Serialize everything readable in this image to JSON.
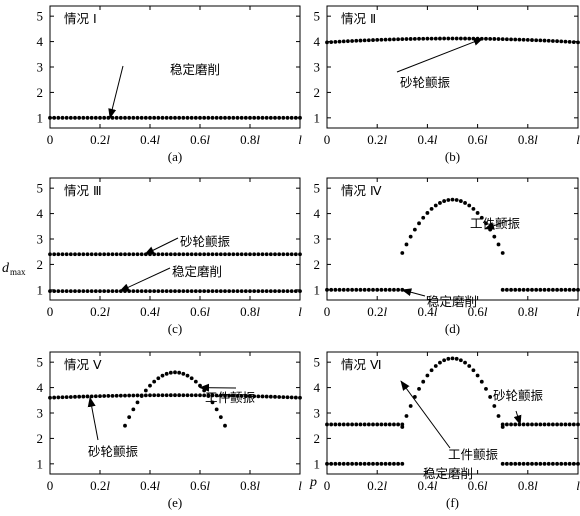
{
  "figure": {
    "ylabel": {
      "main": "d",
      "sub": "max"
    },
    "xlabel": "p"
  },
  "chart_data": [
    {
      "panel": "a",
      "type": "scatter",
      "title": "情况 Ⅰ",
      "caption": "(a)",
      "x_ticks": [
        "0",
        "0.2l",
        "0.4l",
        "0.6l",
        "0.8l",
        "l"
      ],
      "y_ticks": [
        "1",
        "2",
        "3",
        "4",
        "5"
      ],
      "xlim": [
        0,
        1
      ],
      "ylim": [
        0.6,
        5.4
      ],
      "series": [
        {
          "x_range": [
            0,
            1
          ],
          "y": 1.0
        }
      ],
      "annotations": [
        {
          "text": "稳定磨削",
          "x": 0.2,
          "y": 1.0
        }
      ]
    },
    {
      "panel": "b",
      "type": "scatter",
      "title": "情况 Ⅱ",
      "caption": "(b)",
      "x_ticks": [
        "0",
        "0.2l",
        "0.4l",
        "0.6l",
        "0.8l",
        "l"
      ],
      "y_ticks": [
        "1",
        "2",
        "3",
        "4",
        "5"
      ],
      "xlim": [
        0,
        1
      ],
      "ylim": [
        0.6,
        5.4
      ],
      "series": [
        {
          "x_range": [
            0,
            1
          ],
          "base": 3.97,
          "peak": 4.12,
          "peak_x": 0.5
        }
      ],
      "annotations": [
        {
          "text": "砂轮颤振",
          "x": 0.6,
          "y": 4.1
        }
      ]
    },
    {
      "panel": "c",
      "type": "scatter",
      "title": "情况 Ⅲ",
      "caption": "(c)",
      "x_ticks": [
        "0",
        "0.2l",
        "0.4l",
        "0.6l",
        "0.8l",
        "l"
      ],
      "y_ticks": [
        "1",
        "2",
        "3",
        "4",
        "5"
      ],
      "xlim": [
        0,
        1
      ],
      "ylim": [
        0.6,
        5.4
      ],
      "series": [
        {
          "x_range": [
            0,
            1
          ],
          "y": 2.4
        },
        {
          "x_range": [
            0,
            1
          ],
          "y": 0.95
        }
      ],
      "annotations": [
        {
          "text": "砂轮颤振",
          "x": 0.32,
          "y": 2.4
        },
        {
          "text": "稳定磨削",
          "x": 0.25,
          "y": 0.95
        }
      ]
    },
    {
      "panel": "d",
      "type": "scatter",
      "title": "情况 Ⅳ",
      "caption": "(d)",
      "x_ticks": [
        "0",
        "0.2l",
        "0.4l",
        "0.6l",
        "0.8l",
        "l"
      ],
      "y_ticks": [
        "1",
        "2",
        "3",
        "4",
        "5"
      ],
      "xlim": [
        0,
        1
      ],
      "ylim": [
        0.6,
        5.4
      ],
      "series": [
        {
          "x_range": [
            0,
            0.3
          ],
          "y": 1.0
        },
        {
          "x_range": [
            0.3,
            0.7
          ],
          "base": 2.45,
          "peak": 4.55,
          "peak_x": 0.5
        },
        {
          "x_range": [
            0.7,
            1
          ],
          "y": 1.0
        }
      ],
      "annotations": [
        {
          "text": "工件颤振",
          "x": 0.62,
          "y": 3.55
        },
        {
          "text": "稳定磨削",
          "x": 0.3,
          "y": 1.0
        }
      ]
    },
    {
      "panel": "e",
      "type": "scatter",
      "title": "情况 Ⅴ",
      "caption": "(e)",
      "x_ticks": [
        "0",
        "0.2l",
        "0.4l",
        "0.6l",
        "0.8l",
        "l"
      ],
      "y_ticks": [
        "1",
        "2",
        "3",
        "4",
        "5"
      ],
      "xlim": [
        0,
        1
      ],
      "ylim": [
        0.6,
        5.4
      ],
      "series": [
        {
          "x_range": [
            0,
            1
          ],
          "base": 3.6,
          "peak": 3.7,
          "peak_x": 0.5
        },
        {
          "x_range": [
            0.3,
            0.7
          ],
          "base": 2.5,
          "peak": 4.6,
          "peak_x": 0.5
        }
      ],
      "annotations": [
        {
          "text": "工件颤振",
          "x": 0.56,
          "y": 4.0
        },
        {
          "text": "砂轮颤振",
          "x": 0.18,
          "y": 3.6
        }
      ]
    },
    {
      "panel": "f",
      "type": "scatter",
      "title": "情况 Ⅵ",
      "caption": "(f)",
      "x_ticks": [
        "0",
        "0.2l",
        "0.4l",
        "0.6l",
        "0.8l",
        "l"
      ],
      "y_ticks": [
        "1",
        "2",
        "3",
        "4",
        "5"
      ],
      "xlim": [
        0,
        1
      ],
      "ylim": [
        0.6,
        5.4
      ],
      "series": [
        {
          "x_range": [
            0,
            0.3
          ],
          "y": 1.0
        },
        {
          "x_range": [
            0.7,
            1
          ],
          "y": 1.0
        },
        {
          "x_range": [
            0,
            0.3
          ],
          "y": 2.55
        },
        {
          "x_range": [
            0.7,
            1
          ],
          "y": 2.55
        },
        {
          "x_range": [
            0.3,
            0.7
          ],
          "base": 2.45,
          "peak": 5.15,
          "peak_x": 0.5
        }
      ],
      "annotations": [
        {
          "text": "砂轮颤振",
          "x": 0.78,
          "y": 2.55
        },
        {
          "text": "工件颤振",
          "x": 0.29,
          "y": 2.5
        },
        {
          "text": "稳定磨削",
          "x": 0.45,
          "y": 0.3
        }
      ]
    }
  ]
}
